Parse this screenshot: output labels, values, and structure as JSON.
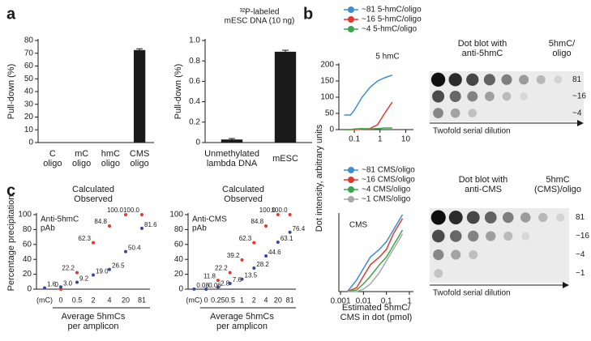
{
  "panels": {
    "a": "a",
    "b": "b",
    "c": "c"
  },
  "dot_blots": [
    {
      "title": "Dot blot with\nanti-5hmC",
      "column_label": "5hmC/\noligo",
      "rows": [
        "81",
        "~16",
        "~4"
      ],
      "arrow_label": "Twofold serial dilution"
    },
    {
      "title": "Dot blot with\nanti-CMS",
      "column_label": "5hmC\n(CMS)/oligo",
      "rows": [
        "81",
        "~16",
        "~4",
        "~1"
      ],
      "arrow_label": "Twofold serial dilution"
    }
  ],
  "chart_data": [
    {
      "type": "bar",
      "y_label": "Pull-down (%)",
      "categories": [
        "C\noligo",
        "mC\noligo",
        "hmC\noligo",
        "CMS\noligo"
      ],
      "values": [
        0,
        0,
        0,
        72.5
      ],
      "errors": [
        0,
        0,
        0,
        1
      ],
      "color": "#1a1a1a",
      "ylim": [
        0,
        80
      ],
      "yticks": [
        0,
        10,
        20,
        30,
        40,
        50,
        60,
        70,
        80
      ]
    },
    {
      "type": "bar",
      "title": "³²P-labeled\nmESC DNA (10 ng)",
      "y_label": "Pull-down (%)",
      "categories": [
        "Unmethylated\nlambda DNA",
        "mESC"
      ],
      "values": [
        0.03,
        0.89
      ],
      "errors": [
        0.01,
        0.015
      ],
      "color": "#1a1a1a",
      "ylim": [
        0,
        1
      ],
      "yticks": [
        0,
        0.2,
        0.4,
        0.6,
        0.8,
        {
          "value": 1,
          "label": "1.0"
        }
      ]
    },
    {
      "type": "line",
      "y_label": "Dot intensity, arbitrary units",
      "annotation": "5 hmC",
      "log_x": true,
      "x": [
        0.04,
        0.07,
        0.1,
        0.2,
        0.4,
        0.8,
        1.5,
        3
      ],
      "series": [
        {
          "name": "~81 5-hmC/oligo",
          "color": "#3b8fd0",
          "values": [
            45,
            45,
            60,
            100,
            130,
            150,
            160,
            168
          ]
        },
        {
          "name": "~16 5-hmC/oligo",
          "color": "#e03a2f",
          "values": [
            0,
            0,
            0,
            1,
            3,
            15,
            50,
            85
          ]
        },
        {
          "name": "~4 5-hmC/oligo",
          "color": "#3aa64a",
          "values": [
            0,
            0,
            2,
            3,
            2,
            3,
            5,
            5
          ]
        }
      ],
      "xlim": [
        0.025,
        20
      ],
      "xticks": [
        0.1,
        1,
        10
      ],
      "ylim": [
        0,
        200
      ],
      "yticks": [
        0,
        50,
        100,
        150,
        200
      ]
    },
    {
      "type": "line",
      "x_label": "Estimated 5hmC/\nCMS in dot (pmol)",
      "annotation": "CMS",
      "log_x": true,
      "x": [
        0.002,
        0.005,
        0.01,
        0.02,
        0.05,
        0.1,
        0.2,
        0.5
      ],
      "series": [
        {
          "name": "~81 CMS/oligo",
          "color": "#3b8fd0",
          "values": [
            0,
            15,
            30,
            45,
            55,
            65,
            80,
            100
          ]
        },
        {
          "name": "~16 CMS/oligo",
          "color": "#e03a2f",
          "values": [
            0,
            5,
            20,
            35,
            45,
            55,
            75,
            95
          ]
        },
        {
          "name": "~4 CMS/oligo",
          "color": "#3aa64a",
          "values": [
            0,
            2,
            10,
            20,
            35,
            45,
            60,
            80
          ]
        },
        {
          "name": "~1 CMS/oligo",
          "color": "#a8a8a8",
          "values": [
            0,
            0,
            3,
            10,
            25,
            40,
            55,
            75
          ]
        }
      ],
      "xlim": [
        0.00085,
        1.5
      ],
      "xticks": [
        0.001,
        0.01,
        0.1,
        1
      ],
      "ylim": [
        0,
        100
      ]
    },
    {
      "type": "dot",
      "y_label": "Percentage precipitation",
      "x_label": "Average 5hmCs\nper amplicon",
      "annotation": "Anti-5hmC\npAb",
      "categories": [
        "(mC)",
        "0",
        "0.5",
        "2",
        "4",
        "20",
        "81"
      ],
      "series": [
        {
          "name": "Calculated",
          "color": "#e03a2f",
          "values": [
            null,
            0,
            22.2,
            62.3,
            84.8,
            100,
            100
          ],
          "value_labels": [
            null,
            "0",
            "22.2",
            "62.3",
            "84.8",
            "100.0",
            "100.0"
          ]
        },
        {
          "name": "Observed",
          "color": "#2f4aa0",
          "values": [
            1.6,
            3.0,
            9.2,
            19.0,
            26.5,
            50.4,
            81.6
          ],
          "value_labels": [
            "1.6",
            "3.0",
            "9.2",
            "19.0",
            "26.5",
            "50.4",
            "81.6"
          ]
        }
      ],
      "ylim": [
        0,
        100
      ],
      "yticks": [
        0,
        20,
        40,
        60,
        80,
        100
      ]
    },
    {
      "type": "dot",
      "x_label": "Average 5hmCs\nper amplicon",
      "annotation": "Anti-CMS\npAb",
      "categories": [
        "(mC)",
        "0",
        "0.25",
        "0.5",
        "1",
        "2",
        "4",
        "20",
        "81"
      ],
      "series": [
        {
          "name": "Calculated",
          "color": "#e03a2f",
          "values": [
            null,
            null,
            11.8,
            22.2,
            39.2,
            62.3,
            84.8,
            100,
            100
          ],
          "value_labels": [
            null,
            null,
            "11.8",
            "22.2",
            "39.2",
            "62.3",
            "84.8",
            "100.0",
            "100.0"
          ]
        },
        {
          "name": "Observed",
          "color": "#2f4aa0",
          "values": [
            0.08,
            0.06,
            2.8,
            7.6,
            13.5,
            28.2,
            44.6,
            63.1,
            76.4
          ],
          "value_labels": [
            "0.08",
            "0.06",
            "2.8",
            "7.6",
            "13.5",
            "28.2",
            "44.6",
            "63.1",
            "76.4"
          ]
        }
      ],
      "ylim": [
        0,
        100
      ],
      "yticks": [
        0,
        20,
        40,
        60,
        80,
        100
      ]
    }
  ]
}
